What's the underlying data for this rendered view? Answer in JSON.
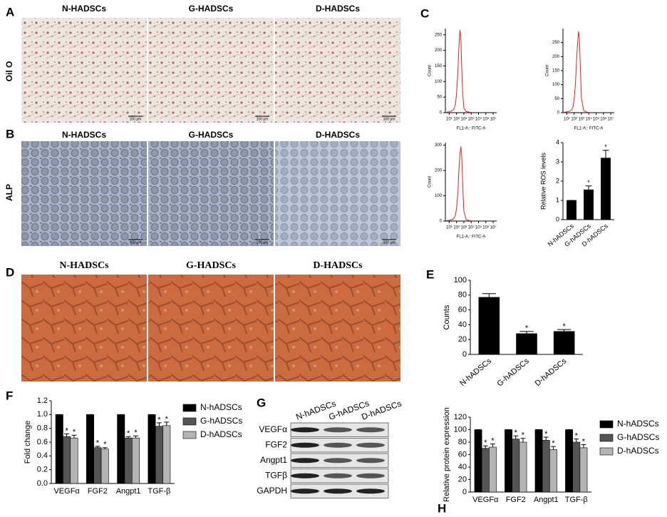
{
  "figure": {
    "panel_labels": [
      "A",
      "B",
      "C",
      "D",
      "E",
      "F",
      "G",
      "H"
    ],
    "panel_a": {
      "row_label": "Oil O",
      "columns": [
        "N-HADSCs",
        "G-HADSCs",
        "D-HADSCs"
      ],
      "scale_bar": "100 μm"
    },
    "panel_b": {
      "row_label": "ALP",
      "columns": [
        "N-HADSCs",
        "G-HADSCs",
        "D-HADSCs"
      ],
      "scale_bar": "100 μm"
    },
    "panel_d": {
      "columns": [
        "N-HADSCs",
        "G-HADSCs",
        "D-HADSCs"
      ]
    },
    "panel_g": {
      "lanes": [
        "N-hADSCs",
        "G-hADSCs",
        "D-hADSCs"
      ],
      "rows": [
        "VEGFα",
        "FGF2",
        "Angpt1",
        "TGFβ",
        "GAPDH"
      ]
    }
  },
  "chart_data": [
    {
      "type": "line",
      "xlabel": "FL1-A:: FITC-A",
      "ylabel": "Count",
      "log_x": true,
      "x": [
        5,
        10,
        20,
        40,
        70,
        100,
        150,
        200,
        250,
        300,
        400,
        500,
        700,
        1000,
        2000,
        5000,
        10000
      ],
      "values": [
        2,
        3,
        5,
        10,
        25,
        60,
        130,
        200,
        245,
        265,
        230,
        150,
        60,
        15,
        4,
        2,
        1
      ],
      "color": "#e8211c",
      "xlim": [
        3,
        30000000
      ],
      "xticks": [
        {
          "value": 10,
          "label": "10¹"
        },
        {
          "value": 100,
          "label": "10²"
        },
        {
          "value": 1000,
          "label": "10³"
        },
        {
          "value": 10000,
          "label": "10⁴"
        },
        {
          "value": 100000,
          "label": "10⁵"
        },
        {
          "value": 1000000,
          "label": "10⁶"
        },
        {
          "value": 10000000,
          "label": "10⁷"
        }
      ],
      "ylim": [
        0,
        270
      ],
      "yticks": [
        0,
        50,
        100,
        150,
        200,
        250
      ]
    },
    {
      "type": "line",
      "xlabel": "FL1-A:: FITC-A",
      "ylabel": "Count",
      "log_x": true,
      "x": [
        5,
        10,
        20,
        40,
        70,
        100,
        150,
        200,
        300,
        400,
        500,
        600,
        800,
        1000,
        2000,
        5000,
        10000
      ],
      "values": [
        2,
        3,
        5,
        8,
        20,
        45,
        100,
        170,
        250,
        290,
        270,
        220,
        120,
        50,
        8,
        2,
        1
      ],
      "color": "#e8211c",
      "xlim": [
        3,
        30000000
      ],
      "xticks": [
        {
          "value": 10,
          "label": "10¹"
        },
        {
          "value": 100,
          "label": "10²"
        },
        {
          "value": 1000,
          "label": "10³"
        },
        {
          "value": 10000,
          "label": "10⁴"
        },
        {
          "value": 100000,
          "label": "10⁵"
        },
        {
          "value": 1000000,
          "label": "10⁶"
        },
        {
          "value": 10000000,
          "label": "10⁷"
        }
      ],
      "ylim": [
        0,
        300
      ],
      "yticks": [
        0,
        50,
        100,
        150,
        200,
        250
      ]
    },
    {
      "type": "line",
      "xlabel": "FL1-A:: FITC-A",
      "ylabel": "Count",
      "log_x": true,
      "x": [
        5,
        10,
        20,
        40,
        70,
        100,
        150,
        200,
        300,
        400,
        500,
        600,
        800,
        1000,
        2000,
        5000,
        10000
      ],
      "values": [
        2,
        3,
        5,
        9,
        22,
        50,
        110,
        190,
        270,
        295,
        260,
        200,
        100,
        40,
        6,
        2,
        1
      ],
      "color": "#e8211c",
      "xlim": [
        3,
        30000000
      ],
      "xticks": [
        {
          "value": 10,
          "label": "10¹"
        },
        {
          "value": 100,
          "label": "10²"
        },
        {
          "value": 1000,
          "label": "10³"
        },
        {
          "value": 10000,
          "label": "10⁴"
        },
        {
          "value": 100000,
          "label": "10⁵"
        },
        {
          "value": 1000000,
          "label": "10⁶"
        },
        {
          "value": 10000000,
          "label": "10⁷"
        }
      ],
      "ylim": [
        0,
        310
      ],
      "yticks": [
        0,
        100,
        200,
        300
      ]
    },
    {
      "type": "bar",
      "ylabel": "Relative ROS levels",
      "categories": [
        "N-hADSCs",
        "G-hADSCs",
        "D-hADSCs"
      ],
      "values": [
        1,
        1.55,
        3.2
      ],
      "errors": [
        0,
        0.2,
        0.4
      ],
      "markers": [
        null,
        "*",
        "*"
      ],
      "color": "#000000",
      "ylim": [
        0,
        4
      ],
      "yticks": [
        0,
        1,
        2,
        3,
        4
      ]
    },
    {
      "type": "bar",
      "ylabel": "Counts",
      "categories": [
        "N-hADSCs",
        "G-hADSCs",
        "D-hADSCs"
      ],
      "values": [
        77,
        28,
        31
      ],
      "errors": [
        5,
        3,
        2.5
      ],
      "markers": [
        null,
        "*",
        "*"
      ],
      "color": "#000000",
      "ylim": [
        0,
        100
      ],
      "yticks": [
        0,
        20,
        40,
        60,
        80,
        100
      ]
    },
    {
      "type": "grouped_bar",
      "ylabel": "Fold change",
      "legend": "right",
      "categories": [
        "VEGFα",
        "FGF2",
        "Angpt1",
        "TGF-β"
      ],
      "series": [
        {
          "name": "N-hADSCs",
          "color": "#000000",
          "values": [
            1,
            1,
            1,
            1
          ],
          "errors": [
            0,
            0,
            0,
            0
          ],
          "markers": [
            null,
            null,
            null,
            null
          ]
        },
        {
          "name": "G-hADSCs",
          "color": "#555555",
          "values": [
            0.68,
            0.52,
            0.66,
            0.83
          ],
          "errors": [
            0.04,
            0.02,
            0.02,
            0.05
          ],
          "markers": [
            "*",
            "*",
            "*",
            "*"
          ]
        },
        {
          "name": "D-hADSCs",
          "color": "#b4b4b4",
          "values": [
            0.66,
            0.5,
            0.66,
            0.84
          ],
          "errors": [
            0.04,
            0.02,
            0.03,
            0.05
          ],
          "markers": [
            "*",
            "*",
            "*",
            "*"
          ]
        }
      ],
      "ylim": [
        0,
        1.2
      ],
      "yticks": [
        {
          "value": 0,
          "label": "0.0"
        },
        0.2,
        0.4,
        0.6,
        0.8,
        {
          "value": 1,
          "label": "1.0"
        },
        1.2
      ]
    },
    {
      "type": "grouped_bar",
      "ylabel": "Relative protein expression",
      "legend": "right",
      "categories": [
        "VEGFα",
        "FGF2",
        "Angpt1",
        "TGF-β"
      ],
      "series": [
        {
          "name": "N-hADSCs",
          "color": "#000000",
          "values": [
            100,
            100,
            100,
            100
          ],
          "errors": [
            0,
            0,
            0,
            0
          ],
          "markers": [
            null,
            null,
            null,
            null
          ]
        },
        {
          "name": "G-hADSCs",
          "color": "#555555",
          "values": [
            70,
            85,
            83,
            80
          ],
          "errors": [
            4,
            5,
            5,
            5
          ],
          "markers": [
            "*",
            "*",
            "*",
            "*"
          ]
        },
        {
          "name": "D-hADSCs",
          "color": "#b4b4b4",
          "values": [
            72,
            80,
            68,
            71
          ],
          "errors": [
            5,
            6,
            5,
            5
          ],
          "markers": [
            "*",
            "*",
            "*",
            "*"
          ]
        }
      ],
      "ylim": [
        0,
        120
      ],
      "yticks": [
        0,
        20,
        40,
        60,
        80,
        100,
        120
      ]
    }
  ]
}
